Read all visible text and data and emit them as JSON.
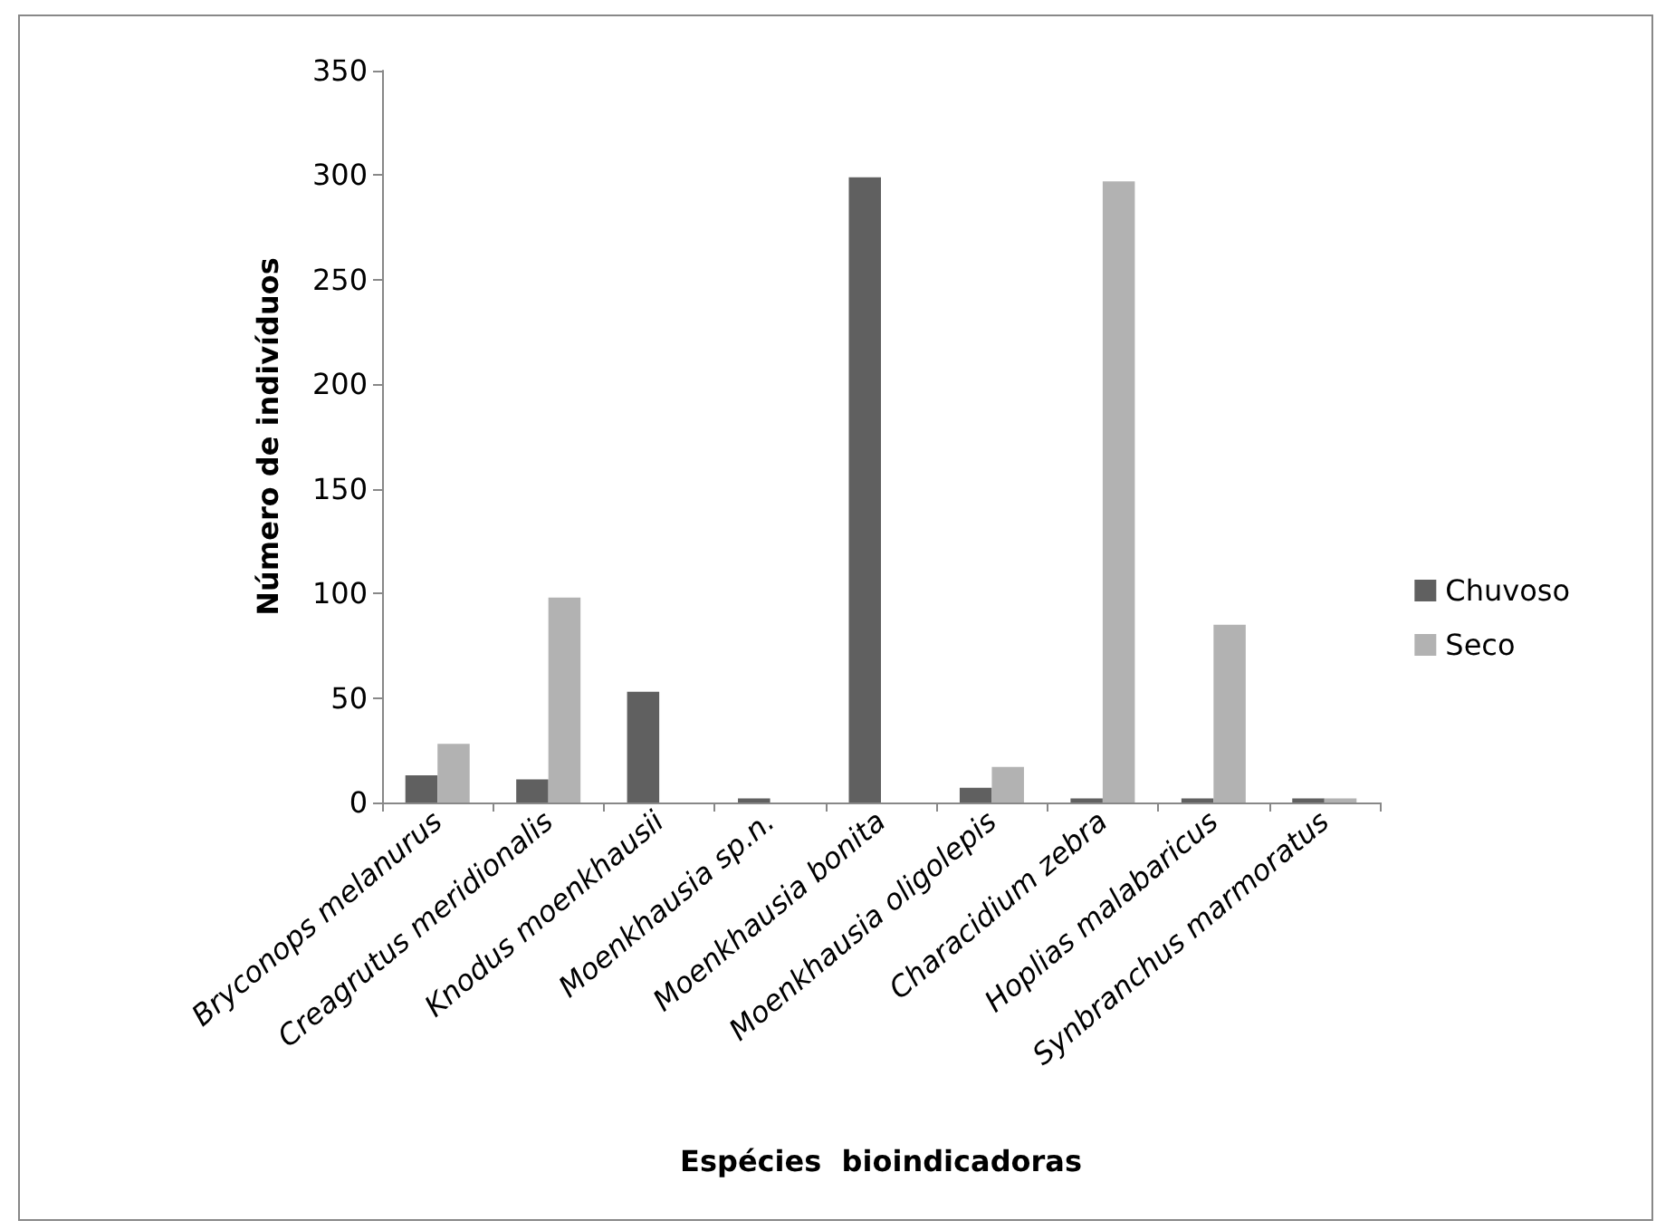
{
  "chart_data": {
    "type": "bar",
    "xlabel": "Espécies  bioindicadoras",
    "ylabel": "Número de indivíduos",
    "categories": [
      "Bryconops melanurus",
      "Creagrutus meridionalis",
      "Knodus moenkhausii",
      "Moenkhausia sp.n.",
      "Moenkhausia bonita",
      "Moenkhausia oligolepis",
      "Characidium zebra",
      "Hoplias malabaricus",
      "Synbranchus marmoratus"
    ],
    "series": [
      {
        "name": "Chuvoso",
        "color": "#606060",
        "values": [
          13,
          11,
          53,
          2,
          299,
          7,
          2,
          2,
          2
        ]
      },
      {
        "name": "Seco",
        "color": "#b2b2b2",
        "values": [
          28,
          98,
          0,
          0,
          0,
          17,
          297,
          85,
          2
        ]
      }
    ],
    "ylim": [
      0,
      350
    ],
    "yticks": [
      0,
      50,
      100,
      150,
      200,
      250,
      300,
      350
    ],
    "grid": false,
    "legend": "right"
  }
}
